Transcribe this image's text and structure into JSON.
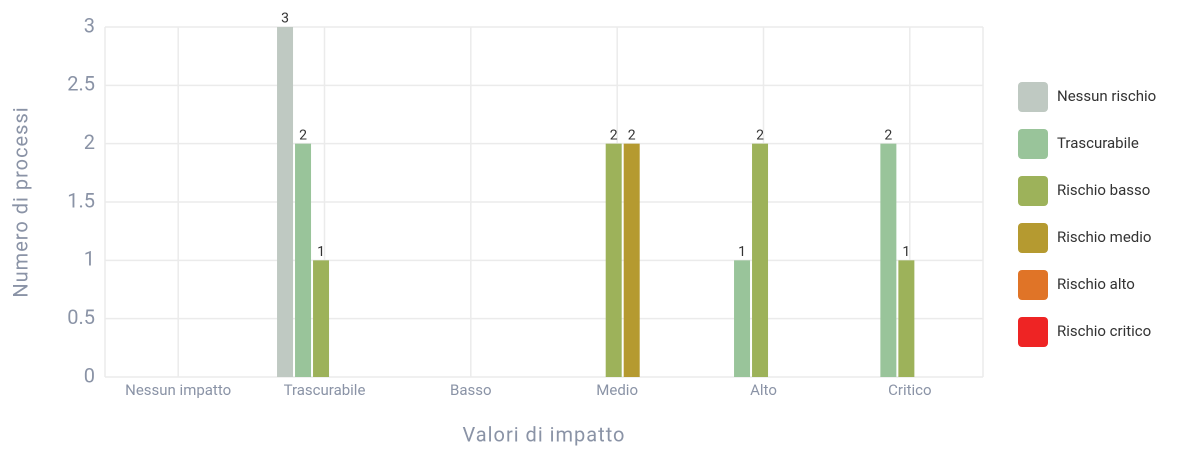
{
  "chart_data": {
    "type": "bar",
    "x_label": "Valori di impatto",
    "y_label": "Numero di processi",
    "categories": [
      "Nessun impatto",
      "Trascurabile",
      "Basso",
      "Medio",
      "Alto",
      "Critico"
    ],
    "series": [
      {
        "name": "Nessun rischio",
        "color": "#bfc9c2",
        "values": [
          0,
          3,
          0,
          0,
          0,
          0
        ]
      },
      {
        "name": "Trascurabile",
        "color": "#99c49a",
        "values": [
          0,
          2,
          0,
          0,
          1,
          2
        ]
      },
      {
        "name": "Rischio basso",
        "color": "#9db25a",
        "values": [
          0,
          1,
          0,
          2,
          2,
          1
        ]
      },
      {
        "name": "Rischio medio",
        "color": "#b59a30",
        "values": [
          0,
          0,
          0,
          2,
          0,
          0
        ]
      },
      {
        "name": "Rischio alto",
        "color": "#e07427",
        "values": [
          0,
          0,
          0,
          0,
          0,
          0
        ]
      },
      {
        "name": "Rischio critico",
        "color": "#ee2424",
        "values": [
          0,
          0,
          0,
          0,
          0,
          0
        ]
      }
    ],
    "ylim": [
      0,
      3
    ],
    "yticks": [
      0,
      0.5,
      1,
      1.5,
      2,
      2.5,
      3
    ],
    "grid": true,
    "legend": "right"
  }
}
